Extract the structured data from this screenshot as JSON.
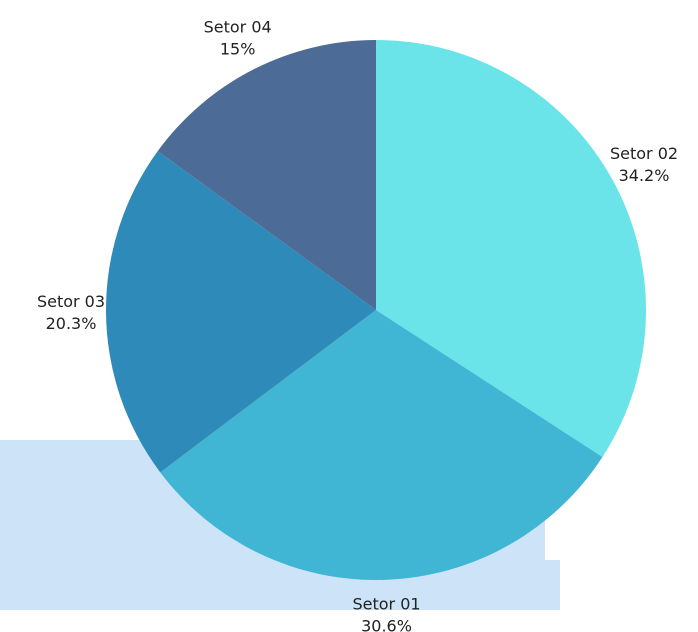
{
  "chart_data": {
    "type": "pie",
    "categories": [
      "Setor 02",
      "Setor 01",
      "Setor 03",
      "Setor 04"
    ],
    "values": [
      34.2,
      30.6,
      20.3,
      15
    ],
    "value_labels": [
      "34.2%",
      "30.6%",
      "20.3%",
      "15%"
    ],
    "colors": [
      "#6ae4e8",
      "#40b5d4",
      "#2e8ab8",
      "#4c6b96"
    ]
  }
}
